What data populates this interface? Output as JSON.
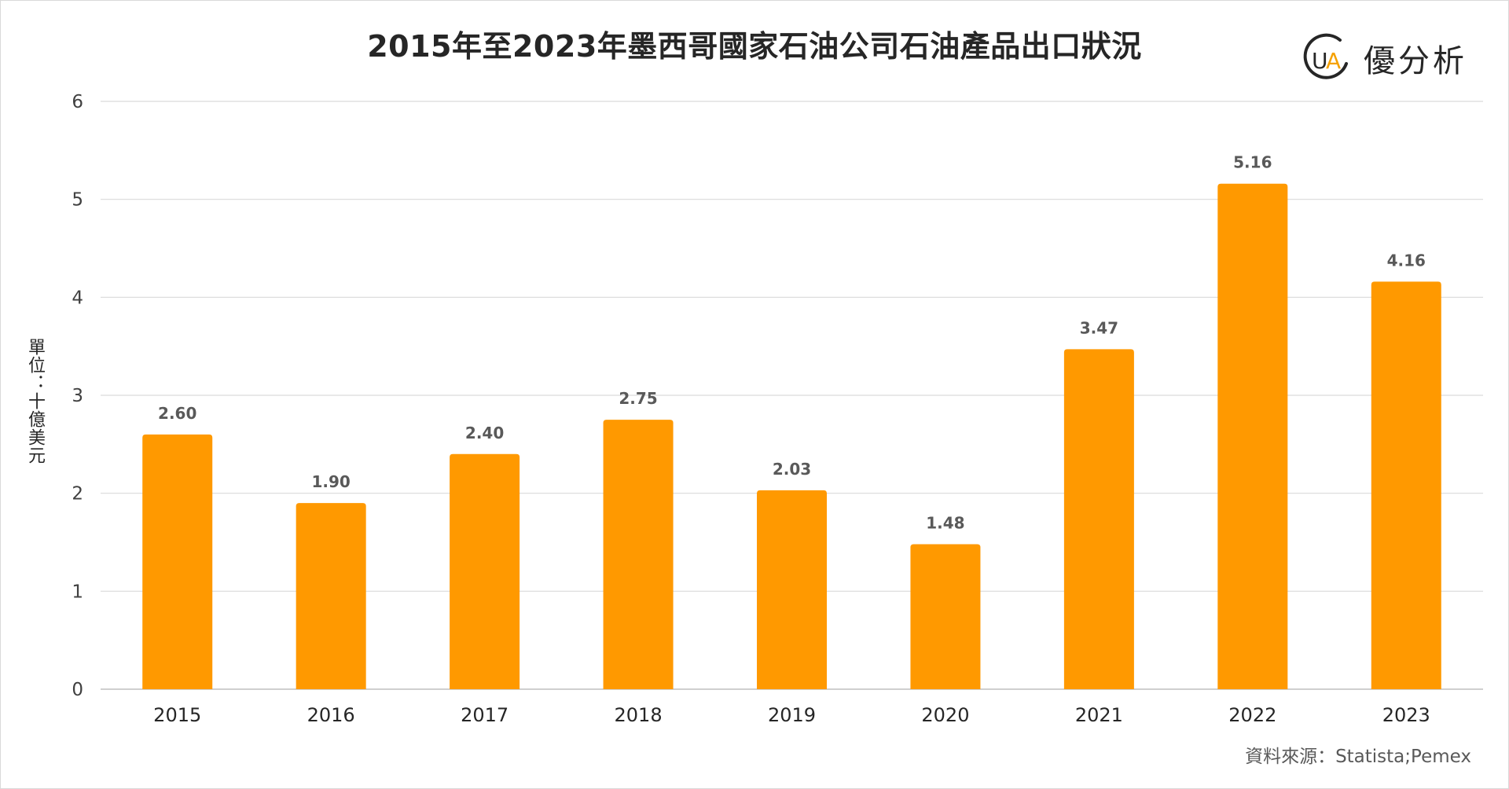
{
  "chart_data": {
    "type": "bar",
    "title": "2015年至2023年墨西哥國家石油公司石油產品出口狀況",
    "ylabel": "單位：十億美元",
    "xlabel": "",
    "categories": [
      "2015",
      "2016",
      "2017",
      "2018",
      "2019",
      "2020",
      "2021",
      "2022",
      "2023"
    ],
    "values": [
      2.6,
      1.9,
      2.4,
      2.75,
      2.03,
      1.48,
      3.47,
      5.16,
      4.16
    ],
    "value_labels": [
      "2.60",
      "1.90",
      "2.40",
      "2.75",
      "2.03",
      "1.48",
      "3.47",
      "5.16",
      "4.16"
    ],
    "ylim": [
      0,
      6
    ],
    "yticks": [
      0,
      1,
      2,
      3,
      4,
      5,
      6
    ],
    "grid": true,
    "legend": "none",
    "bar_color": "#FF9900"
  },
  "logo": {
    "text": "優分析",
    "mark": "UA",
    "colors": {
      "ring": "#262626",
      "accent": "#F5A100"
    }
  },
  "source": "資料來源：Statista;Pemex"
}
